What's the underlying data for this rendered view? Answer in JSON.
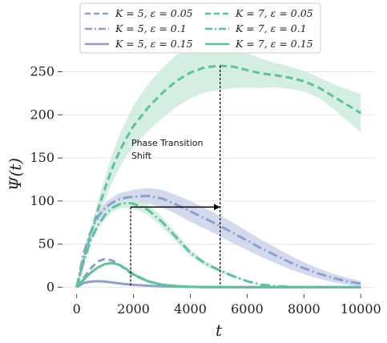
{
  "colors": {
    "purple": "#8c9fcd",
    "green": "#5cc29c",
    "grid": "#e6e6e6",
    "band_purple": "#c9d1e8",
    "band_green": "#cbeadd"
  },
  "chart_data": {
    "type": "line",
    "xlabel": "t",
    "ylabel": "Ψ(t)",
    "xlim": [
      -500,
      10500
    ],
    "ylim": [
      -8,
      270
    ],
    "x_ticks": [
      0,
      2000,
      4000,
      6000,
      8000,
      10000
    ],
    "y_ticks": [
      0,
      50,
      100,
      150,
      200,
      250
    ],
    "grid": "horizontal",
    "legend": {
      "placement": "top-center",
      "columns": 2
    },
    "x": [
      0,
      250,
      500,
      750,
      1000,
      1250,
      1500,
      1750,
      2000,
      2500,
      3000,
      3500,
      4000,
      4500,
      5000,
      5500,
      6000,
      6500,
      7000,
      7500,
      8000,
      8500,
      9000,
      9500,
      10000
    ],
    "series": [
      {
        "name": "K = 5, ε = 0.05",
        "color": "purple",
        "dash": "dashed",
        "values": [
          0,
          11,
          22,
          30,
          33,
          31,
          26,
          20,
          14,
          7,
          3,
          1.5,
          0.6,
          0.3,
          0.2,
          0.1,
          0.1,
          0.1,
          0,
          0,
          0,
          0,
          0,
          0,
          0
        ]
      },
      {
        "name": "K = 5, ε = 0.1",
        "color": "purple",
        "dash": "dashdot",
        "values": [
          0,
          40,
          65,
          82,
          92,
          98,
          102,
          104,
          105,
          106,
          103,
          96,
          88,
          80,
          72,
          63,
          54,
          45,
          37,
          29,
          22,
          16,
          11,
          7,
          4
        ],
        "band": [
          0,
          3,
          4,
          5,
          6,
          6,
          7,
          7,
          8,
          9,
          10,
          11,
          12,
          12,
          12,
          12,
          11,
          10,
          9,
          8,
          7,
          6,
          5,
          4,
          3
        ]
      },
      {
        "name": "K = 5, ε = 0.15",
        "color": "purple",
        "dash": "solid",
        "values": [
          0,
          5,
          6.5,
          7,
          6.5,
          5.5,
          4.5,
          3.5,
          2.8,
          1.8,
          1.1,
          0.7,
          0.4,
          0.2,
          0.1,
          0,
          0,
          0,
          0,
          0,
          0,
          0,
          0,
          0,
          0
        ]
      },
      {
        "name": "K = 7, ε = 0.05",
        "color": "green",
        "dash": "dashed",
        "values": [
          0,
          32,
          62,
          90,
          115,
          138,
          157,
          173,
          187,
          208,
          225,
          239,
          249,
          255,
          257,
          256,
          252,
          248,
          246,
          243,
          239,
          232,
          222,
          212,
          202
        ],
        "band": [
          0,
          4,
          7,
          10,
          13,
          16,
          19,
          21,
          24,
          27,
          29,
          30,
          30,
          29,
          28,
          25,
          20,
          17,
          14,
          13,
          12,
          12,
          14,
          18,
          22
        ]
      },
      {
        "name": "K = 7, ε = 0.1",
        "color": "green",
        "dash": "dashdot",
        "values": [
          0,
          30,
          55,
          72,
          84,
          92,
          96,
          98,
          97,
          90,
          76,
          58,
          40,
          28,
          20,
          13,
          7,
          3,
          1.2,
          0.5,
          0.2,
          0.1,
          0,
          0,
          0
        ],
        "band": [
          0,
          2,
          3,
          4,
          5,
          5,
          5,
          6,
          6,
          6,
          6,
          5,
          4,
          3,
          2,
          2,
          1,
          0,
          0,
          0,
          0,
          0,
          0,
          0,
          0
        ]
      },
      {
        "name": "K = 7, ε = 0.15",
        "color": "green",
        "dash": "solid",
        "values": [
          0,
          9,
          17,
          23,
          27,
          28,
          26,
          21,
          15,
          7,
          3,
          1.2,
          0.5,
          0.2,
          0.1,
          0,
          0,
          0,
          0,
          0,
          0,
          0,
          0,
          0,
          0
        ]
      }
    ],
    "annotations": {
      "label": "Phase Transition\nShift",
      "label_lines": [
        "Phase Transition",
        "Shift"
      ],
      "label_anchor": {
        "x": 2150,
        "y": 164
      },
      "arrow": {
        "from": {
          "x": 1900,
          "y": 93
        },
        "to": {
          "x": 5050,
          "y": 93
        }
      },
      "vlines": [
        {
          "x": 1900,
          "y_top": 93
        },
        {
          "x": 5050,
          "y_top": 257
        }
      ]
    }
  }
}
